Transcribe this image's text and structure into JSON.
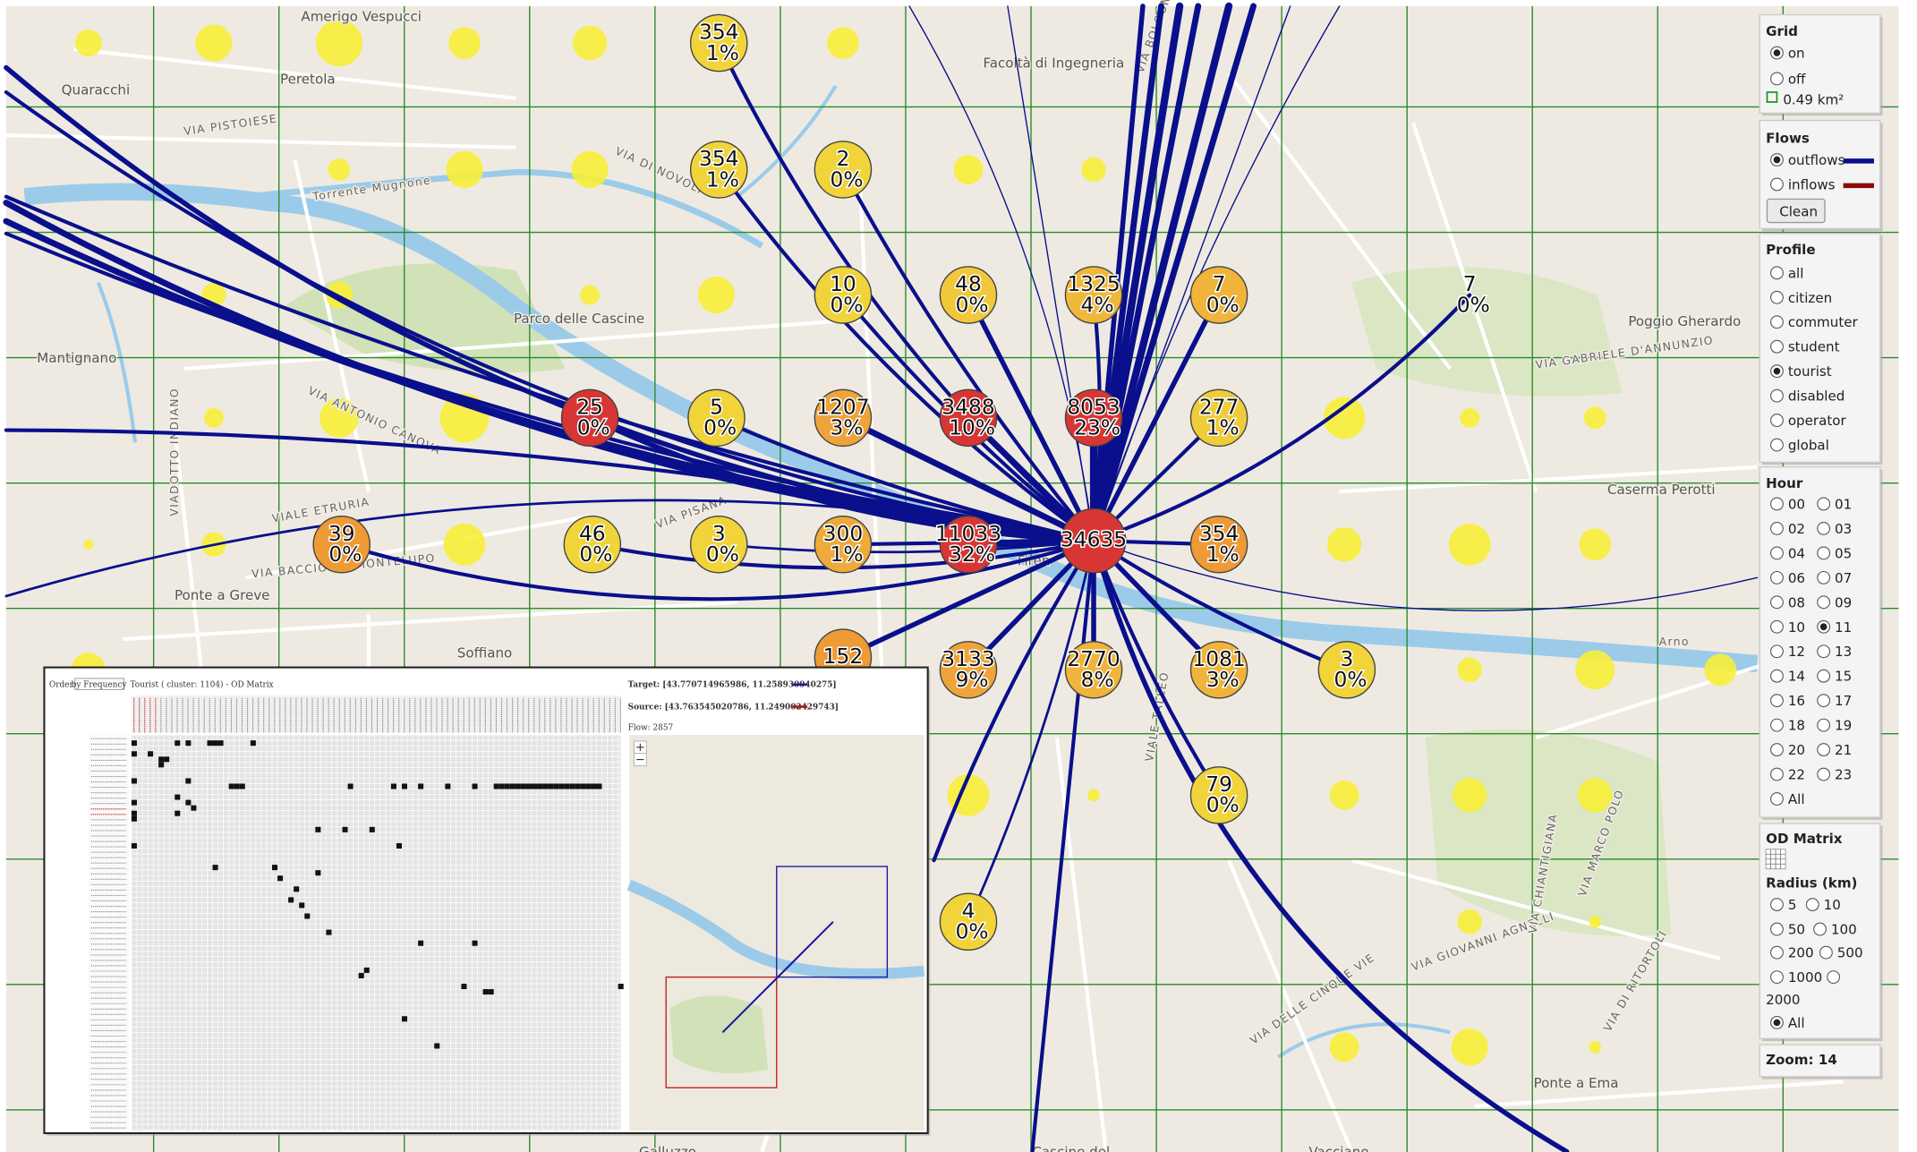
{
  "controls": {
    "grid": {
      "title": "Grid",
      "options": [
        "on",
        "off"
      ],
      "selected": "on",
      "cell_size": "0.49 km²"
    },
    "flows": {
      "title": "Flows",
      "options": [
        "outflows",
        "inflows"
      ],
      "selected": "outflows",
      "button": "Clean"
    },
    "profile": {
      "title": "Profile",
      "options": [
        "all",
        "citizen",
        "commuter",
        "student",
        "tourist",
        "disabled",
        "operator",
        "global"
      ],
      "selected": "tourist"
    },
    "hour": {
      "title": "Hour",
      "options": [
        "00",
        "01",
        "02",
        "03",
        "04",
        "05",
        "06",
        "07",
        "08",
        "09",
        "10",
        "11",
        "12",
        "13",
        "14",
        "15",
        "16",
        "17",
        "18",
        "19",
        "20",
        "21",
        "22",
        "23",
        "All"
      ],
      "selected": "11"
    },
    "od_matrix": {
      "title": "OD Matrix"
    },
    "radius": {
      "title": "Radius (km)",
      "options": [
        "5",
        "10",
        "50",
        "100",
        "200",
        "500",
        "1000",
        "2000",
        "All"
      ],
      "selected": "All"
    },
    "zoom": "Zoom: 14"
  },
  "clusters": [
    {
      "count": 354,
      "pct": "1%",
      "color": "#f0d43a"
    },
    {
      "count": 354,
      "pct": "1%",
      "color": "#f0d43a"
    },
    {
      "count": 2,
      "pct": "0%",
      "color": "#f0d43a"
    },
    {
      "count": 10,
      "pct": "0%",
      "color": "#f0d43a"
    },
    {
      "count": 48,
      "pct": "0%",
      "color": "#f0c83a"
    },
    {
      "count": 1325,
      "pct": "4%",
      "color": "#f0b83a"
    },
    {
      "count": 7,
      "pct": "0%",
      "color": "#f0b43a"
    },
    {
      "count": 7,
      "pct": "0%"
    },
    {
      "count": 25,
      "pct": "0%",
      "color": "#d83535"
    },
    {
      "count": 5,
      "pct": "0%",
      "color": "#f0d43a"
    },
    {
      "count": 1207,
      "pct": "3%",
      "color": "#eea43a"
    },
    {
      "count": 3488,
      "pct": "10%",
      "color": "#d83535"
    },
    {
      "count": 8053,
      "pct": "23%",
      "color": "#d83535"
    },
    {
      "count": 277,
      "pct": "1%",
      "color": "#f0cc3a"
    },
    {
      "count": 39,
      "pct": "0%",
      "color": "#ee9a35"
    },
    {
      "count": 46,
      "pct": "0%",
      "color": "#f0d43a"
    },
    {
      "count": 3,
      "pct": "0%",
      "color": "#f0d43a"
    },
    {
      "count": 300,
      "pct": "1%",
      "color": "#eeaa3a"
    },
    {
      "count": 11033,
      "pct": "32%",
      "color": "#d83535"
    },
    {
      "count": 34635,
      "color": "#d83535"
    },
    {
      "count": 354,
      "pct": "1%",
      "color": "#ee9a35"
    },
    {
      "count": 152,
      "color": "#ee9a35"
    },
    {
      "count": 3133,
      "pct": "9%",
      "color": "#eea43a"
    },
    {
      "count": 2770,
      "pct": "8%",
      "color": "#f0b43a"
    },
    {
      "count": 1081,
      "pct": "3%",
      "color": "#f0b43a"
    },
    {
      "count": 3,
      "pct": "0%",
      "color": "#f0d43a"
    },
    {
      "count": 79,
      "pct": "0%",
      "color": "#f0d43a"
    },
    {
      "count": 4,
      "pct": "0%",
      "color": "#f0d43a"
    }
  ],
  "map_labels": [
    "Amerigo Vespucci",
    "Quaracchi",
    "Peretola",
    "VIA PISTOIESE",
    "VIA DI NOVOLI",
    "Facoltà di Ingegneria",
    "Torrente Mugnone",
    "Mantignano",
    "Parco delle Cascine",
    "VIA ANTONIO CANOVA",
    "VIALE ETRURIA",
    "VIA BACCIO DA MONTELUPO",
    "VIA PISANA",
    "Ponte a Greve",
    "Soffiano",
    "Firen",
    "VIA BOLOGNESE",
    "Poggio Gherardo",
    "VIA GABRIELE D'ANNUNZIO",
    "Caserma Perotti",
    "Arno",
    "VIALE TALLEO",
    "VIA MARCO POLO",
    "VIA GIOVANNI AGNELLI",
    "VIA DELLE CINQUE VIE",
    "VIA DI RITORTOLI",
    "Ponte a Ema",
    "Galluzzo",
    "Vacciano",
    "Cascine del",
    "VIA CHIANTIGIANA",
    "VIADOTTO INDIANO"
  ],
  "od_panel": {
    "order_label": "Order:",
    "order_value": "by Frequency",
    "title": "Tourist ( cluster: 1104) - OD Matrix",
    "target": "Target: [43.770714965986, 11.258930940275]",
    "source": "Source: [43.763545020786, 11.249002429743]",
    "flow": "Flow: 2857"
  }
}
